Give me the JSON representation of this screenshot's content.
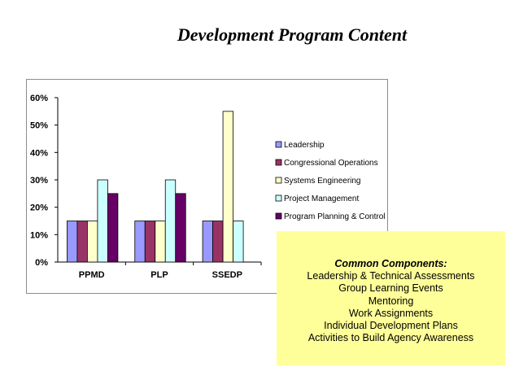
{
  "page": {
    "title": "Development Program Content"
  },
  "chart_data": {
    "type": "bar",
    "title": "",
    "xlabel": "",
    "ylabel": "",
    "ylim": [
      0,
      0.6
    ],
    "yticks": [
      "0%",
      "10%",
      "20%",
      "30%",
      "40%",
      "50%",
      "60%"
    ],
    "categories": [
      "PPMD",
      "PLP",
      "SSEDP"
    ],
    "legend_position": "right",
    "grid": false,
    "series": [
      {
        "name": "Leadership",
        "color": "#9999ff",
        "values": [
          0.15,
          0.15,
          0.15
        ]
      },
      {
        "name": "Congressional Operations",
        "color": "#993366",
        "values": [
          0.15,
          0.15,
          0.15
        ]
      },
      {
        "name": "Systems Engineering",
        "color": "#ffffcc",
        "values": [
          0.15,
          0.15,
          0.55
        ]
      },
      {
        "name": "Project Management",
        "color": "#ccffff",
        "values": [
          0.3,
          0.3,
          0.15
        ]
      },
      {
        "name": "Program Planning & Control",
        "color": "#660066",
        "values": [
          0.25,
          0.25,
          0.0
        ]
      }
    ]
  },
  "components": {
    "title": "Common Components:",
    "items": [
      "Leadership & Technical Assessments",
      "Group Learning Events",
      "Mentoring",
      "Work Assignments",
      "Individual Development Plans",
      "Activities to Build Agency Awareness"
    ]
  }
}
